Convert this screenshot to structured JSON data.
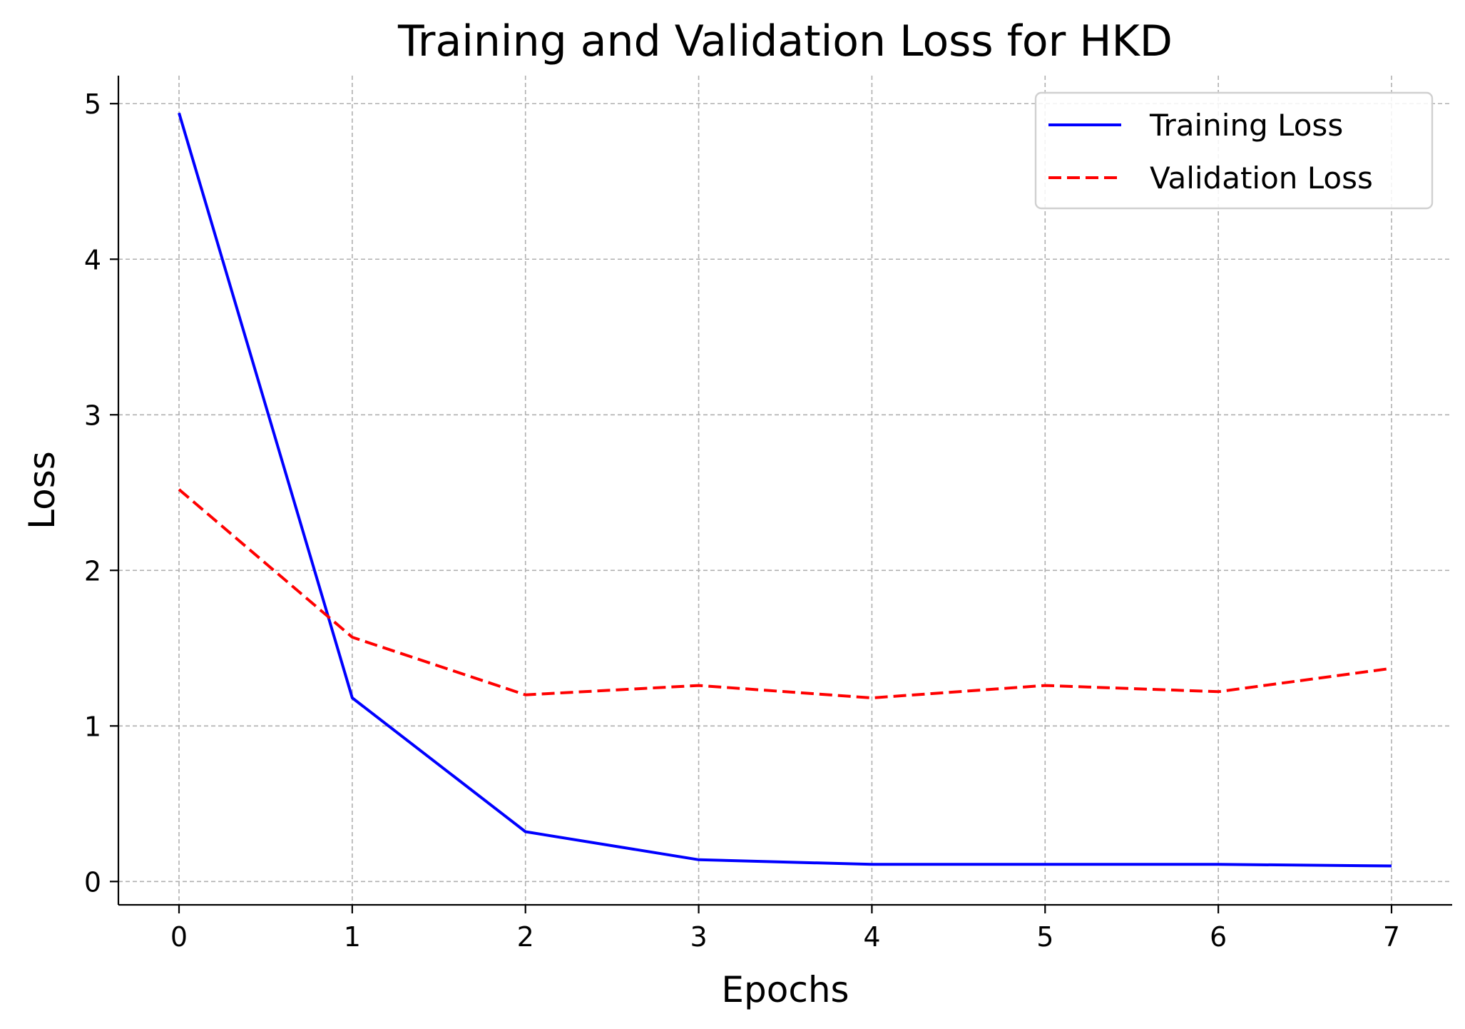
{
  "chart_data": {
    "type": "line",
    "title": "Training and Validation Loss for HKD",
    "xlabel": "Epochs",
    "ylabel": "Loss",
    "x": [
      0,
      1,
      2,
      3,
      4,
      5,
      6,
      7
    ],
    "xlim": [
      -0.35,
      7.35
    ],
    "ylim": [
      -0.15,
      5.18
    ],
    "xticks": [
      "0",
      "1",
      "2",
      "3",
      "4",
      "5",
      "6",
      "7"
    ],
    "yticks": [
      "0",
      "1",
      "2",
      "3",
      "4",
      "5"
    ],
    "grid": true,
    "legend_position": "top-right",
    "series": [
      {
        "name": "Training Loss",
        "values": [
          4.94,
          1.18,
          0.32,
          0.14,
          0.11,
          0.11,
          0.11,
          0.1
        ],
        "color": "#0000ff",
        "style": "solid"
      },
      {
        "name": "Validation Loss",
        "values": [
          2.52,
          1.57,
          1.2,
          1.26,
          1.18,
          1.26,
          1.22,
          1.37
        ],
        "color": "#ff0000",
        "style": "dashed"
      }
    ]
  }
}
